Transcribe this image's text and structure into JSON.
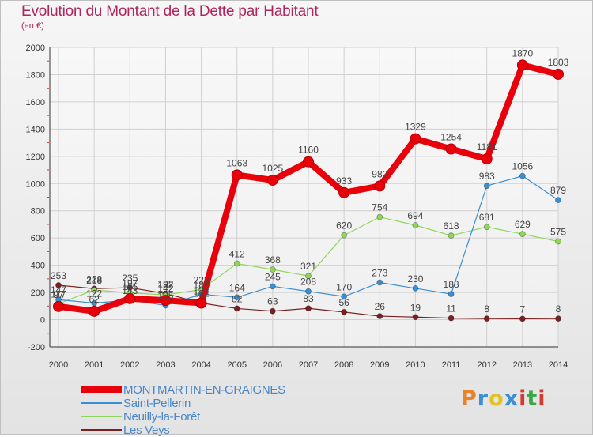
{
  "header": {
    "title": "Evolution du Montant de la Dette par Habitant",
    "unit": "(en €)"
  },
  "brand": {
    "text": "Proxiti",
    "colors": [
      "#e8832a",
      "#3a8fd4",
      "#e2c21e",
      "#3a8fd4",
      "#d43a2f",
      "#3aa84a",
      "#d43a2f"
    ]
  },
  "chart_data": {
    "type": "line",
    "x": [
      "2000",
      "2001",
      "2002",
      "2003",
      "2004",
      "2005",
      "2006",
      "2007",
      "2008",
      "2009",
      "2010",
      "2011",
      "2012",
      "2013",
      "2014"
    ],
    "ylim": [
      -200,
      2000
    ],
    "yticks": [
      -200,
      0,
      200,
      400,
      600,
      800,
      1000,
      1200,
      1400,
      1600,
      1800,
      2000
    ],
    "grid": true,
    "legend_position": "bottom-left",
    "series": [
      {
        "name": "MONTMARTIN-EN-GRAIGNES",
        "color": "#e8000b",
        "values": [
          97,
          62,
          155,
          142,
          122,
          1063,
          1025,
          1160,
          933,
          982,
          1329,
          1254,
          1181,
          1870,
          1803
        ]
      },
      {
        "name": "Saint-Pellerin",
        "color": "#3a8fd4",
        "values": [
          147,
          122,
          143,
          105,
          187,
          164,
          245,
          208,
          170,
          273,
          230,
          188,
          983,
          1056,
          879
        ]
      },
      {
        "name": "Neuilly-la-Forêt",
        "color": "#8fd65a",
        "values": [
          117,
          218,
          197,
          182,
          222,
          412,
          368,
          321,
          620,
          754,
          694,
          618,
          681,
          629,
          575
        ]
      },
      {
        "name": "Les Veys",
        "color": "#7a2020",
        "values": [
          253,
          228,
          235,
          192,
          122,
          82,
          63,
          83,
          56,
          26,
          19,
          11,
          8,
          7,
          8
        ]
      }
    ]
  }
}
